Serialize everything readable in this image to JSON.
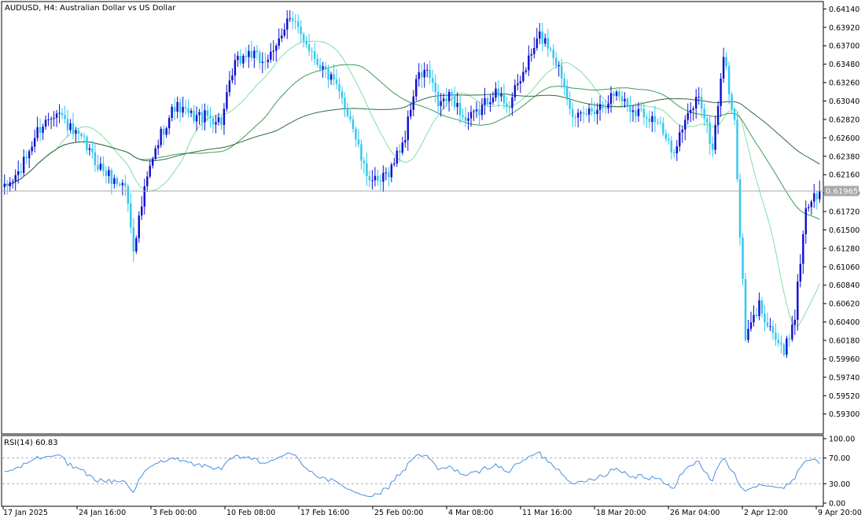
{
  "window": {
    "symbol_label": "AUDUSD, H4:  Australian Dollar vs US Dollar"
  },
  "colors": {
    "up_candle": "#1010d0",
    "down_candle": "#30c8f0",
    "ma_fast": "#7ee0a0",
    "ma_mid": "#3c9a5a",
    "ma_slow": "#2f6b3f",
    "rsi_line": "#4a90e2",
    "price_line": "#a8a8a8",
    "price_tag_bg": "#a8a8a8",
    "price_tag_text": "#ffffff",
    "grid_axis": "#000000"
  },
  "price_panel": {
    "current_price_label": "0.61965",
    "y_axis_ticks": [
      "0.64140",
      "0.63920",
      "0.63700",
      "0.63480",
      "0.63260",
      "0.63040",
      "0.62820",
      "0.62600",
      "0.62380",
      "0.62160",
      "0.61940",
      "0.61720",
      "0.61500",
      "0.61280",
      "0.61060",
      "0.60840",
      "0.60620",
      "0.60400",
      "0.60180",
      "0.59960",
      "0.59740",
      "0.59520",
      "0.59300"
    ]
  },
  "rsi_panel": {
    "label": "RSI(14) 60.83",
    "y_axis_ticks": [
      "100.00",
      "70.00",
      "30.00",
      "0.00"
    ]
  },
  "x_axis_labels": [
    "17 Jan 2025",
    "24 Jan 16:00",
    "3 Feb 00:00",
    "10 Feb 08:00",
    "17 Feb 16:00",
    "25 Feb 00:00",
    "4 Mar 08:00",
    "11 Mar 16:00",
    "18 Mar 20:00",
    "26 Mar 04:00",
    "2 Apr 12:00",
    "9 Apr 20:00"
  ],
  "chart_data": {
    "type": "candlestick",
    "symbol": "AUDUSD",
    "timeframe": "H4",
    "ylim": [
      0.591,
      0.642
    ],
    "current_price": 0.61965,
    "indicators": [
      "moving averages (3)",
      "RSI(14)"
    ],
    "rsi": {
      "period": 14,
      "last": 60.83,
      "levels": [
        70,
        30
      ],
      "ylim": [
        0,
        100
      ]
    },
    "close_anchors": [
      [
        0,
        0.6198
      ],
      [
        6,
        0.6222
      ],
      [
        12,
        0.6268
      ],
      [
        19,
        0.6295
      ],
      [
        25,
        0.6265
      ],
      [
        29,
        0.6254
      ],
      [
        33,
        0.6232
      ],
      [
        40,
        0.6208
      ],
      [
        44,
        0.6204
      ],
      [
        47,
        0.613
      ],
      [
        52,
        0.6212
      ],
      [
        57,
        0.6265
      ],
      [
        62,
        0.6298
      ],
      [
        68,
        0.6286
      ],
      [
        74,
        0.6285
      ],
      [
        79,
        0.628
      ],
      [
        84,
        0.6348
      ],
      [
        89,
        0.6362
      ],
      [
        93,
        0.6352
      ],
      [
        98,
        0.6358
      ],
      [
        103,
        0.6405
      ],
      [
        109,
        0.638
      ],
      [
        114,
        0.6352
      ],
      [
        120,
        0.6325
      ],
      [
        126,
        0.6285
      ],
      [
        131,
        0.6222
      ],
      [
        136,
        0.6203
      ],
      [
        141,
        0.6225
      ],
      [
        146,
        0.6262
      ],
      [
        150,
        0.633
      ],
      [
        154,
        0.634
      ],
      [
        158,
        0.63
      ],
      [
        163,
        0.631
      ],
      [
        168,
        0.628
      ],
      [
        172,
        0.6288
      ],
      [
        178,
        0.6315
      ],
      [
        184,
        0.63
      ],
      [
        190,
        0.6345
      ],
      [
        195,
        0.6382
      ],
      [
        199,
        0.6368
      ],
      [
        203,
        0.6335
      ],
      [
        208,
        0.628
      ],
      [
        213,
        0.6292
      ],
      [
        218,
        0.63
      ],
      [
        223,
        0.6315
      ],
      [
        228,
        0.6296
      ],
      [
        233,
        0.629
      ],
      [
        238,
        0.628
      ],
      [
        243,
        0.6242
      ],
      [
        248,
        0.6278
      ],
      [
        253,
        0.6312
      ],
      [
        258,
        0.6245
      ],
      [
        262,
        0.636
      ],
      [
        266,
        0.6275
      ],
      [
        270,
        0.602
      ],
      [
        275,
        0.606
      ],
      [
        279,
        0.6035
      ],
      [
        284,
        0.6
      ],
      [
        288,
        0.605
      ],
      [
        292,
        0.6178
      ],
      [
        297,
        0.6196
      ]
    ]
  }
}
